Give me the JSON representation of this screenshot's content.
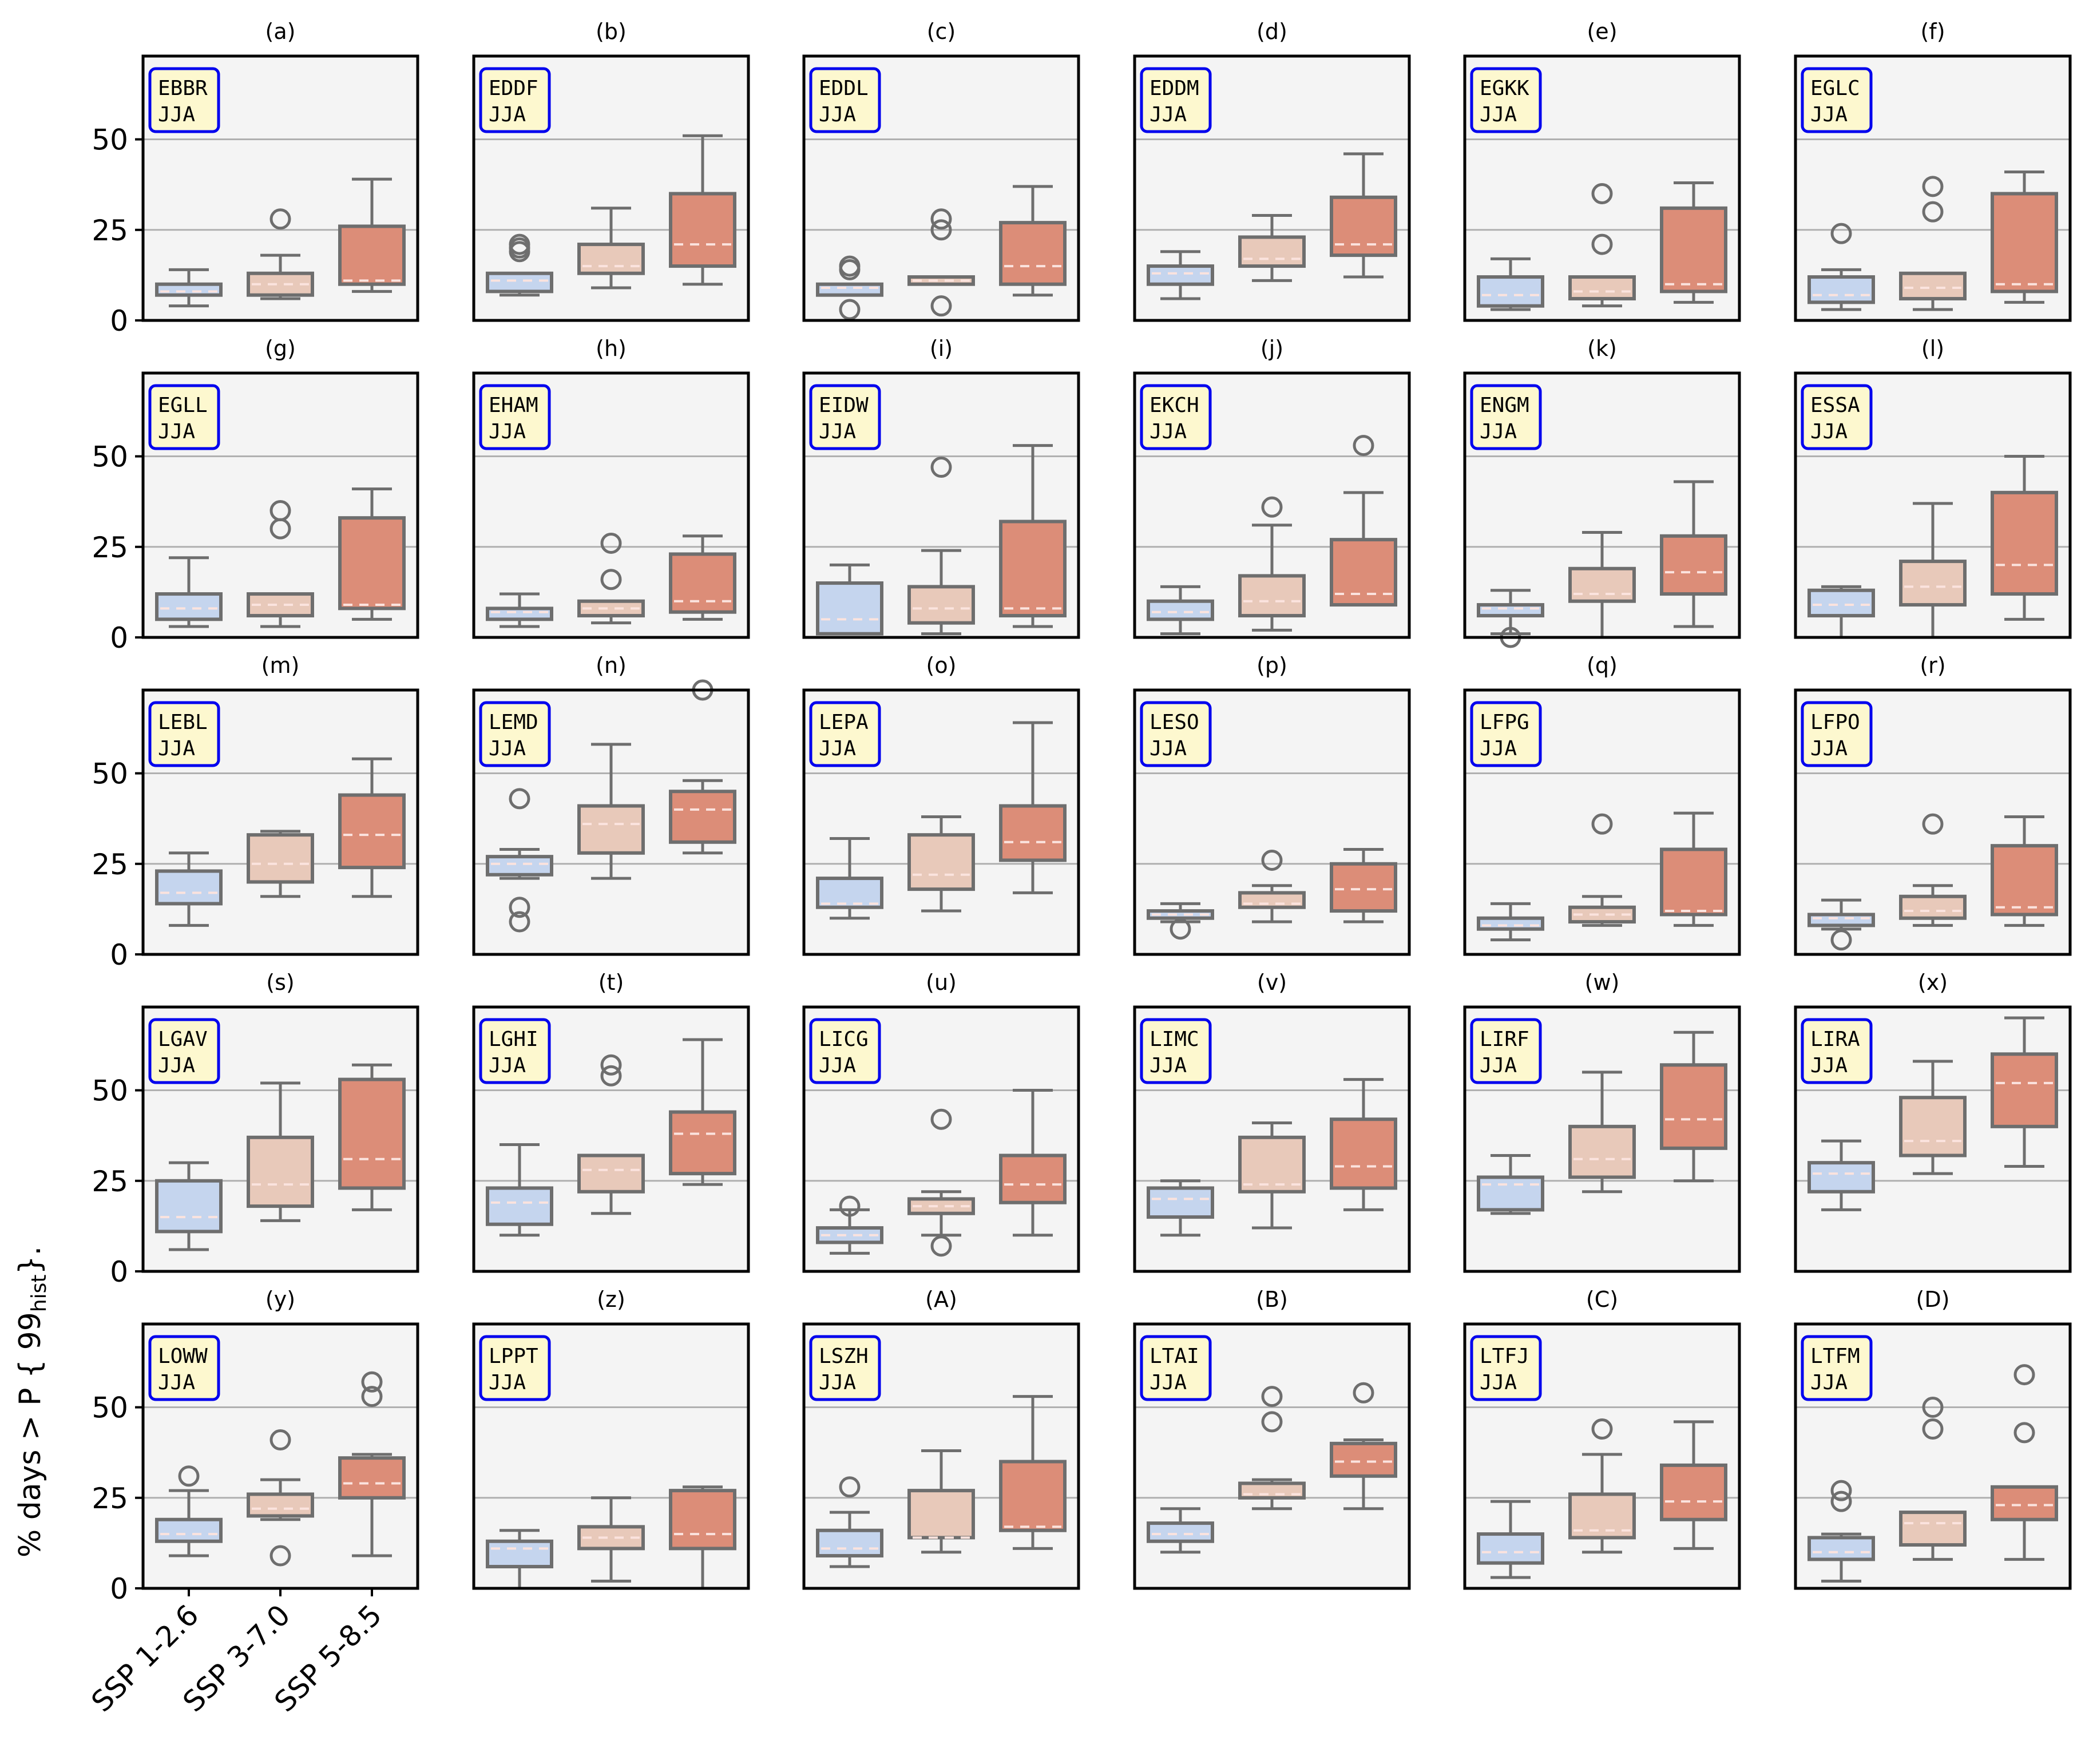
{
  "figure": {
    "ylabel": "% days > P { 99hist }.",
    "ylabel_main": "% days > P { 99",
    "ylabel_sub": "hist",
    "ylabel_tail": "}.",
    "season": "JJA",
    "colors": {
      "ssp126": "#c5d5ee",
      "ssp370": "#e8c9ba",
      "ssp585": "#dc8d78",
      "line": "#6e6e6e",
      "median": "#fbe3de",
      "panel_bg": "#f4f4f4",
      "grid": "#b0b0b0",
      "label_box_fill": "#fdf8cf",
      "label_box_edge": "#0000ee"
    }
  },
  "chart_data": {
    "type": "box",
    "title": "",
    "xlabel": "",
    "ylabel": "% days > P{99_hist}",
    "categories": [
      "SSP 1-2.6",
      "SSP 3-7.0",
      "SSP 5-8.5"
    ],
    "ylim": [
      0,
      73
    ],
    "yticks": [
      0,
      25,
      50
    ],
    "grid": "horizontal at 25 and 50",
    "box_stats_order": [
      "whisker_low",
      "q1",
      "median",
      "q3",
      "whisker_high",
      "outliers"
    ],
    "panels": [
      {
        "letter": "(a)",
        "station": "EBBR",
        "boxes": [
          [
            4,
            7,
            8,
            10,
            14,
            []
          ],
          [
            6,
            7,
            10,
            13,
            18,
            [
              28
            ]
          ],
          [
            8,
            10,
            11,
            26,
            39,
            []
          ]
        ]
      },
      {
        "letter": "(b)",
        "station": "EDDF",
        "boxes": [
          [
            7,
            8,
            11,
            13,
            13,
            [
              19,
              20,
              21
            ]
          ],
          [
            9,
            13,
            15,
            21,
            31,
            []
          ],
          [
            10,
            15,
            21,
            35,
            51,
            []
          ]
        ]
      },
      {
        "letter": "(c)",
        "station": "EDDL",
        "boxes": [
          [
            7,
            7,
            9,
            10,
            10,
            [
              3,
              14,
              15
            ]
          ],
          [
            10,
            10,
            11,
            12,
            12,
            [
              4,
              25,
              28
            ]
          ],
          [
            7,
            10,
            15,
            27,
            37,
            []
          ]
        ]
      },
      {
        "letter": "(d)",
        "station": "EDDM",
        "boxes": [
          [
            6,
            10,
            13,
            15,
            19,
            []
          ],
          [
            11,
            15,
            17,
            23,
            29,
            []
          ],
          [
            12,
            18,
            21,
            34,
            46,
            []
          ]
        ]
      },
      {
        "letter": "(e)",
        "station": "EGKK",
        "boxes": [
          [
            3,
            4,
            7,
            12,
            17,
            []
          ],
          [
            4,
            6,
            8,
            12,
            12,
            [
              21,
              35
            ]
          ],
          [
            5,
            8,
            10,
            31,
            38,
            []
          ]
        ]
      },
      {
        "letter": "(f)",
        "station": "EGLC",
        "boxes": [
          [
            3,
            5,
            7,
            12,
            14,
            [
              24
            ]
          ],
          [
            3,
            6,
            9,
            13,
            13,
            [
              30,
              37
            ]
          ],
          [
            5,
            8,
            10,
            35,
            41,
            []
          ]
        ]
      },
      {
        "letter": "(g)",
        "station": "EGLL",
        "boxes": [
          [
            3,
            5,
            8,
            12,
            22,
            []
          ],
          [
            3,
            6,
            9,
            12,
            12,
            [
              30,
              35
            ]
          ],
          [
            5,
            8,
            9,
            33,
            41,
            []
          ]
        ]
      },
      {
        "letter": "(h)",
        "station": "EHAM",
        "boxes": [
          [
            3,
            5,
            7,
            8,
            12,
            []
          ],
          [
            4,
            6,
            8,
            10,
            10,
            [
              16,
              26
            ]
          ],
          [
            5,
            7,
            10,
            23,
            28,
            []
          ]
        ]
      },
      {
        "letter": "(i)",
        "station": "EIDW",
        "boxes": [
          [
            1,
            1,
            5,
            15,
            20,
            []
          ],
          [
            1,
            4,
            8,
            14,
            24,
            [
              47
            ]
          ],
          [
            3,
            6,
            8,
            32,
            53,
            []
          ]
        ]
      },
      {
        "letter": "(j)",
        "station": "EKCH",
        "boxes": [
          [
            1,
            5,
            7,
            10,
            14,
            []
          ],
          [
            2,
            6,
            10,
            17,
            31,
            [
              36
            ]
          ],
          [
            9,
            9,
            12,
            27,
            40,
            [
              53
            ]
          ]
        ]
      },
      {
        "letter": "(k)",
        "station": "ENGM",
        "boxes": [
          [
            1,
            6,
            8,
            9,
            13,
            [
              0
            ]
          ],
          [
            0,
            10,
            12,
            19,
            29,
            []
          ],
          [
            3,
            12,
            18,
            28,
            43,
            []
          ]
        ]
      },
      {
        "letter": "(l)",
        "station": "ESSA",
        "boxes": [
          [
            0,
            6,
            9,
            13,
            14,
            []
          ],
          [
            0,
            9,
            14,
            21,
            37,
            []
          ],
          [
            5,
            12,
            20,
            40,
            50,
            []
          ]
        ]
      },
      {
        "letter": "(m)",
        "station": "LEBL",
        "boxes": [
          [
            8,
            14,
            17,
            23,
            28,
            []
          ],
          [
            16,
            20,
            25,
            33,
            34,
            []
          ],
          [
            16,
            24,
            33,
            44,
            54,
            []
          ]
        ]
      },
      {
        "letter": "(n)",
        "station": "LEMD",
        "boxes": [
          [
            21,
            22,
            25,
            27,
            29,
            [
              9,
              13,
              43
            ]
          ],
          [
            21,
            28,
            36,
            41,
            58,
            []
          ],
          [
            28,
            31,
            40,
            45,
            48,
            [
              73
            ]
          ]
        ]
      },
      {
        "letter": "(o)",
        "station": "LEPA",
        "boxes": [
          [
            10,
            13,
            14,
            21,
            32,
            []
          ],
          [
            12,
            18,
            22,
            33,
            38,
            []
          ],
          [
            17,
            26,
            31,
            41,
            64,
            []
          ]
        ]
      },
      {
        "letter": "(p)",
        "station": "LESO",
        "boxes": [
          [
            9,
            10,
            11,
            12,
            14,
            [
              7
            ]
          ],
          [
            9,
            13,
            14,
            17,
            19,
            [
              26
            ]
          ],
          [
            9,
            12,
            18,
            25,
            29,
            []
          ]
        ]
      },
      {
        "letter": "(q)",
        "station": "LFPG",
        "boxes": [
          [
            4,
            7,
            8,
            10,
            14,
            []
          ],
          [
            8,
            9,
            11,
            13,
            16,
            [
              36
            ]
          ],
          [
            8,
            11,
            12,
            29,
            39,
            []
          ]
        ]
      },
      {
        "letter": "(r)",
        "station": "LFPO",
        "boxes": [
          [
            7,
            8,
            10,
            11,
            15,
            [
              4
            ]
          ],
          [
            8,
            10,
            12,
            16,
            19,
            [
              36
            ]
          ],
          [
            8,
            11,
            13,
            30,
            38,
            []
          ]
        ]
      },
      {
        "letter": "(s)",
        "station": "LGAV",
        "boxes": [
          [
            6,
            11,
            15,
            25,
            30,
            []
          ],
          [
            14,
            18,
            24,
            37,
            52,
            []
          ],
          [
            17,
            23,
            31,
            53,
            57,
            []
          ]
        ]
      },
      {
        "letter": "(t)",
        "station": "LGHI",
        "boxes": [
          [
            10,
            13,
            19,
            23,
            35,
            []
          ],
          [
            16,
            22,
            28,
            32,
            32,
            [
              54,
              57
            ]
          ],
          [
            24,
            27,
            38,
            44,
            64,
            []
          ]
        ]
      },
      {
        "letter": "(u)",
        "station": "LICG",
        "boxes": [
          [
            5,
            8,
            10,
            12,
            17,
            [
              18
            ]
          ],
          [
            10,
            16,
            18,
            20,
            22,
            [
              7,
              42
            ]
          ],
          [
            10,
            19,
            24,
            32,
            50,
            []
          ]
        ]
      },
      {
        "letter": "(v)",
        "station": "LIMC",
        "boxes": [
          [
            10,
            15,
            20,
            23,
            25,
            []
          ],
          [
            12,
            22,
            24,
            37,
            41,
            []
          ],
          [
            17,
            23,
            29,
            42,
            53,
            []
          ]
        ]
      },
      {
        "letter": "(w)",
        "station": "LIRF",
        "boxes": [
          [
            16,
            17,
            24,
            26,
            32,
            []
          ],
          [
            22,
            26,
            31,
            40,
            55,
            []
          ],
          [
            25,
            34,
            42,
            57,
            66,
            []
          ]
        ]
      },
      {
        "letter": "(x)",
        "station": "LIRA",
        "boxes": [
          [
            17,
            22,
            27,
            30,
            36,
            []
          ],
          [
            27,
            32,
            36,
            48,
            58,
            []
          ],
          [
            29,
            40,
            52,
            60,
            70,
            []
          ]
        ]
      },
      {
        "letter": "(y)",
        "station": "LOWW",
        "boxes": [
          [
            9,
            13,
            15,
            19,
            27,
            [
              31
            ]
          ],
          [
            19,
            20,
            22,
            26,
            30,
            [
              9,
              41
            ]
          ],
          [
            9,
            25,
            29,
            36,
            37,
            [
              53,
              57
            ]
          ]
        ]
      },
      {
        "letter": "(z)",
        "station": "LPPT",
        "boxes": [
          [
            0,
            6,
            11,
            13,
            16,
            []
          ],
          [
            2,
            11,
            14,
            17,
            25,
            []
          ],
          [
            0,
            11,
            15,
            27,
            28,
            []
          ]
        ]
      },
      {
        "letter": "(A)",
        "station": "LSZH",
        "boxes": [
          [
            6,
            9,
            11,
            16,
            21,
            [
              28
            ]
          ],
          [
            10,
            14,
            14,
            27,
            38,
            []
          ],
          [
            11,
            16,
            17,
            35,
            53,
            []
          ]
        ]
      },
      {
        "letter": "(B)",
        "station": "LTAI",
        "boxes": [
          [
            10,
            13,
            15,
            18,
            22,
            []
          ],
          [
            22,
            25,
            26,
            29,
            30,
            [
              46,
              53
            ]
          ],
          [
            22,
            31,
            35,
            40,
            41,
            [
              54
            ]
          ]
        ]
      },
      {
        "letter": "(C)",
        "station": "LTFJ",
        "boxes": [
          [
            3,
            7,
            10,
            15,
            24,
            []
          ],
          [
            10,
            14,
            16,
            26,
            37,
            [
              44
            ]
          ],
          [
            11,
            19,
            24,
            34,
            46,
            []
          ]
        ]
      },
      {
        "letter": "(D)",
        "station": "LTFM",
        "boxes": [
          [
            2,
            8,
            10,
            14,
            15,
            [
              24,
              27
            ]
          ],
          [
            8,
            12,
            18,
            21,
            21,
            [
              44,
              50
            ]
          ],
          [
            8,
            19,
            23,
            28,
            28,
            [
              43,
              59
            ]
          ]
        ]
      }
    ]
  }
}
